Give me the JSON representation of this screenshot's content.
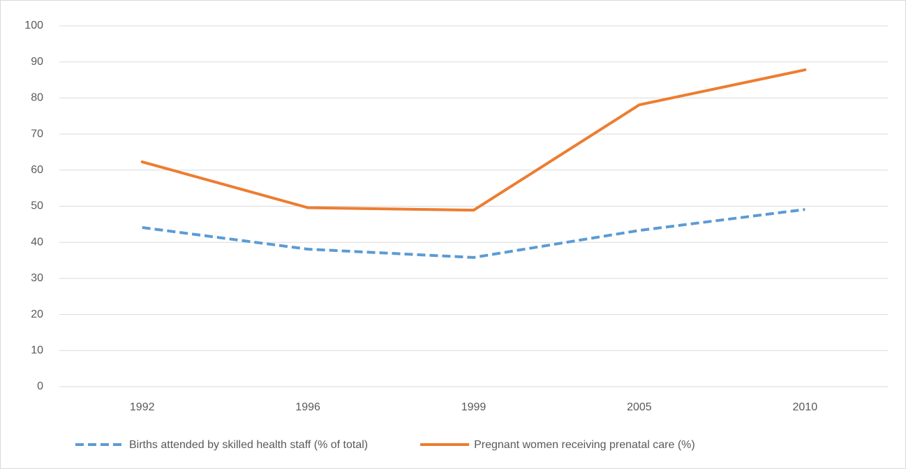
{
  "chart_data": {
    "type": "line",
    "categories": [
      "1992",
      "1996",
      "1999",
      "2005",
      "2010"
    ],
    "series": [
      {
        "name": "Births attended by skilled health staff (% of total)",
        "color": "#5b9bd5",
        "dash": true,
        "values": [
          44.1,
          38.1,
          35.8,
          43.3,
          49.1
        ]
      },
      {
        "name": "Pregnant women receiving prenatal care (%)",
        "color": "#ed7d31",
        "dash": false,
        "values": [
          62.3,
          49.6,
          48.9,
          78.1,
          87.8
        ]
      }
    ],
    "ylim": [
      0,
      100
    ],
    "yticks": [
      0,
      10,
      20,
      30,
      40,
      50,
      60,
      70,
      80,
      90,
      100
    ],
    "grid": true,
    "legend": "bottom"
  }
}
